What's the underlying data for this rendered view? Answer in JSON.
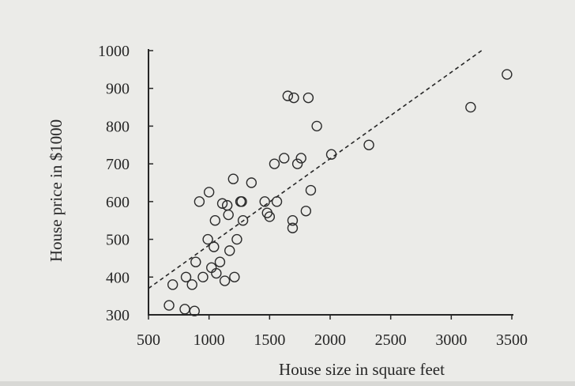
{
  "chart_data": {
    "type": "scatter",
    "title": "",
    "xlabel": "House size in square feet",
    "ylabel": "House price in $1000",
    "xlim": [
      500,
      3500
    ],
    "ylim": [
      300,
      1000
    ],
    "xticks": [
      500,
      1000,
      1500,
      2000,
      2500,
      3000,
      3500
    ],
    "yticks": [
      300,
      400,
      500,
      600,
      700,
      800,
      900,
      1000
    ],
    "grid": false,
    "colors": {
      "marker": "#2b2b2b",
      "axis": "#262626",
      "background": "#ebebe8"
    },
    "series": [
      {
        "marker": "open-circle",
        "points": [
          [
            670,
            325
          ],
          [
            700,
            380
          ],
          [
            800,
            315
          ],
          [
            810,
            400
          ],
          [
            860,
            380
          ],
          [
            880,
            310
          ],
          [
            890,
            440
          ],
          [
            920,
            600
          ],
          [
            950,
            400
          ],
          [
            990,
            500
          ],
          [
            1000,
            625
          ],
          [
            1020,
            425
          ],
          [
            1040,
            480
          ],
          [
            1050,
            550
          ],
          [
            1060,
            410
          ],
          [
            1090,
            440
          ],
          [
            1110,
            595
          ],
          [
            1130,
            390
          ],
          [
            1150,
            590
          ],
          [
            1160,
            565
          ],
          [
            1170,
            470
          ],
          [
            1200,
            660
          ],
          [
            1210,
            400
          ],
          [
            1230,
            500
          ],
          [
            1260,
            600
          ],
          [
            1270,
            600
          ],
          [
            1280,
            550
          ],
          [
            1350,
            650
          ],
          [
            1460,
            600
          ],
          [
            1480,
            570
          ],
          [
            1500,
            560
          ],
          [
            1540,
            700
          ],
          [
            1560,
            600
          ],
          [
            1620,
            715
          ],
          [
            1650,
            880
          ],
          [
            1690,
            530
          ],
          [
            1690,
            550
          ],
          [
            1700,
            875
          ],
          [
            1730,
            700
          ],
          [
            1760,
            715
          ],
          [
            1800,
            575
          ],
          [
            1820,
            875
          ],
          [
            1840,
            630
          ],
          [
            1890,
            800
          ],
          [
            2010,
            725
          ],
          [
            2320,
            750
          ],
          [
            3160,
            850
          ],
          [
            3460,
            937
          ]
        ]
      }
    ],
    "trend_line": {
      "style": "dashed",
      "x": [
        500,
        3250
      ],
      "y": [
        370,
        1000
      ]
    }
  }
}
